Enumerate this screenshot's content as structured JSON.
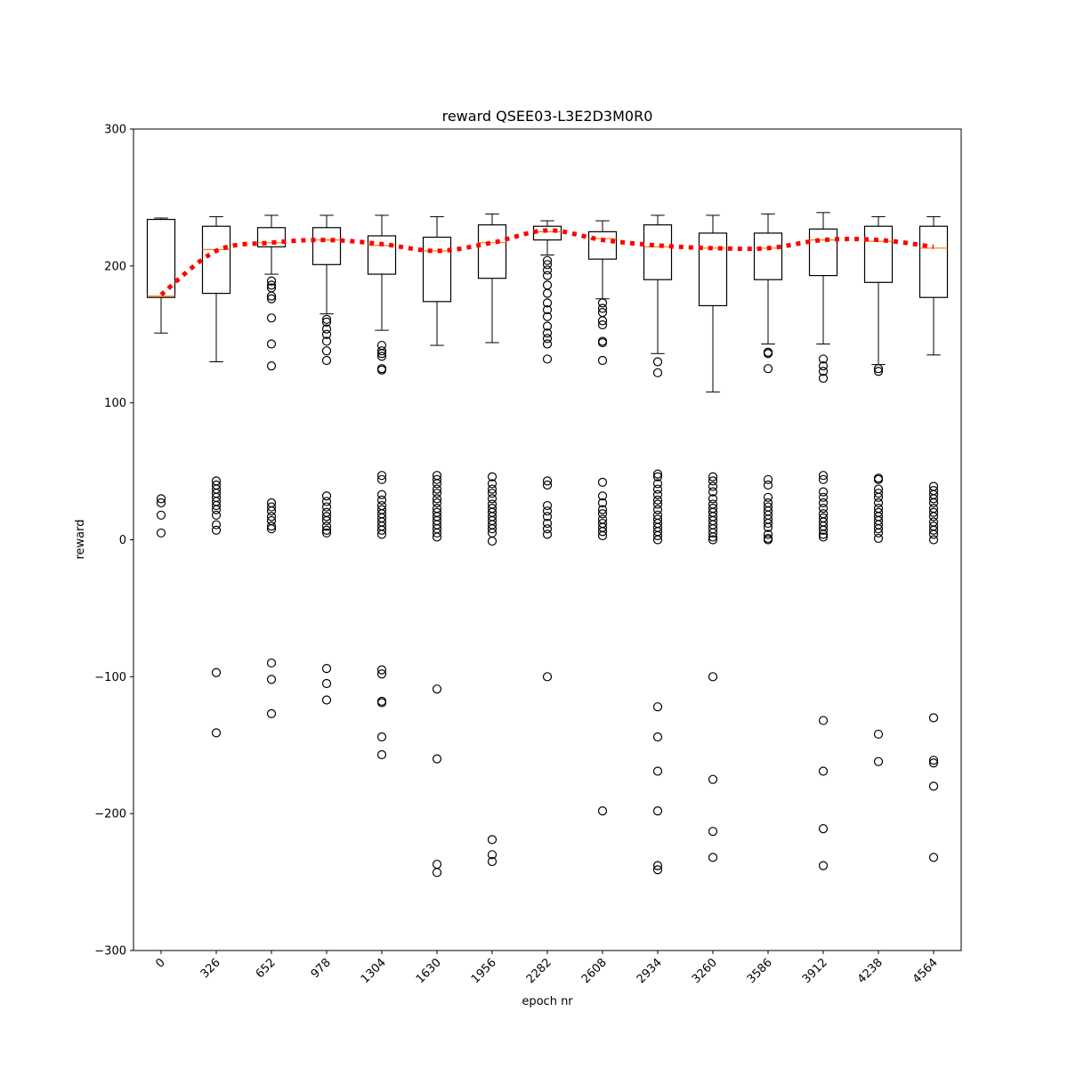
{
  "chart_data": {
    "type": "box",
    "title": "reward QSEE03-L3E2D3M0R0",
    "xlabel": "epoch nr",
    "ylabel": "reward",
    "ylim": [
      -300,
      300
    ],
    "yticks": [
      "300",
      "200",
      "100",
      "0",
      "−100",
      "−200",
      "−300"
    ],
    "categories": [
      "0",
      "326",
      "652",
      "978",
      "1304",
      "1630",
      "1956",
      "2282",
      "2608",
      "2934",
      "3260",
      "3586",
      "3912",
      "4238",
      "4564"
    ],
    "grid": false,
    "legend": "none",
    "boxes": [
      {
        "category": "0",
        "whisker_low": 151,
        "q1": 177,
        "median": 178,
        "q3": 234,
        "whisker_high": 235,
        "outliers": [
          30,
          27,
          18,
          5
        ]
      },
      {
        "category": "326",
        "whisker_low": 130,
        "q1": 180,
        "median": 212,
        "q3": 229,
        "whisker_high": 236,
        "outliers": [
          43,
          40,
          37,
          34,
          31,
          28,
          25,
          22,
          18,
          11,
          7,
          -97,
          -141
        ]
      },
      {
        "category": "652",
        "whisker_low": 194,
        "q1": 214,
        "median": 217,
        "q3": 228,
        "whisker_high": 237,
        "outliers": [
          189,
          186,
          184,
          178,
          176,
          162,
          143,
          127,
          27,
          24,
          21,
          17,
          14,
          10,
          8,
          -90,
          -102,
          -127
        ]
      },
      {
        "category": "978",
        "whisker_low": 165,
        "q1": 201,
        "median": 219,
        "q3": 228,
        "whisker_high": 237,
        "outliers": [
          161,
          159,
          154,
          150,
          145,
          138,
          131,
          32,
          28,
          24,
          20,
          17,
          14,
          10,
          7,
          5,
          -94,
          -105,
          -117
        ]
      },
      {
        "category": "1304",
        "whisker_low": 153,
        "q1": 194,
        "median": 215,
        "q3": 222,
        "whisker_high": 237,
        "outliers": [
          142,
          138,
          136,
          134,
          125,
          124,
          47,
          44,
          33,
          29,
          25,
          22,
          19,
          16,
          13,
          10,
          7,
          4,
          -95,
          -98,
          -118,
          -119,
          -144,
          -157
        ]
      },
      {
        "category": "1630",
        "whisker_low": 142,
        "q1": 174,
        "median": 211,
        "q3": 221,
        "whisker_high": 236,
        "outliers": [
          47,
          44,
          41,
          37,
          34,
          30,
          27,
          23,
          20,
          17,
          14,
          11,
          8,
          5,
          2,
          -109,
          -160,
          -237,
          -243
        ]
      },
      {
        "category": "1956",
        "whisker_low": 144,
        "q1": 191,
        "median": 217,
        "q3": 230,
        "whisker_high": 238,
        "outliers": [
          46,
          41,
          37,
          34,
          30,
          26,
          23,
          20,
          17,
          14,
          11,
          8,
          5,
          -1,
          -219,
          -230,
          -235
        ]
      },
      {
        "category": "2282",
        "whisker_low": 208,
        "q1": 219,
        "median": 225,
        "q3": 229,
        "whisker_high": 233,
        "outliers": [
          204,
          201,
          197,
          193,
          186,
          180,
          173,
          168,
          163,
          156,
          151,
          147,
          143,
          132,
          43,
          40,
          25,
          21,
          17,
          12,
          8,
          4,
          -100
        ]
      },
      {
        "category": "2608",
        "whisker_low": 176,
        "q1": 205,
        "median": 220,
        "q3": 225,
        "whisker_high": 233,
        "outliers": [
          173,
          169,
          166,
          160,
          157,
          145,
          144,
          131,
          42,
          32,
          27,
          22,
          19,
          15,
          12,
          9,
          6,
          3,
          -198
        ]
      },
      {
        "category": "2934",
        "whisker_low": 136,
        "q1": 190,
        "median": 214,
        "q3": 230,
        "whisker_high": 237,
        "outliers": [
          130,
          122,
          48,
          46,
          41,
          37,
          33,
          29,
          26,
          22,
          18,
          15,
          12,
          9,
          6,
          3,
          0,
          -122,
          -144,
          -169,
          -198,
          -238,
          -241
        ]
      },
      {
        "category": "3260",
        "whisker_low": 108,
        "q1": 171,
        "median": 213,
        "q3": 224,
        "whisker_high": 237,
        "outliers": [
          46,
          43,
          39,
          35,
          30,
          26,
          23,
          20,
          17,
          14,
          11,
          8,
          5,
          2,
          0,
          -100,
          -175,
          -213,
          -232
        ]
      },
      {
        "category": "3586",
        "whisker_low": 143,
        "q1": 190,
        "median": 213,
        "q3": 224,
        "whisker_high": 238,
        "outliers": [
          137,
          136,
          125,
          44,
          40,
          31,
          27,
          24,
          21,
          18,
          15,
          12,
          9,
          4,
          1,
          0
        ]
      },
      {
        "category": "3912",
        "whisker_low": 143,
        "q1": 193,
        "median": 219,
        "q3": 227,
        "whisker_high": 239,
        "outliers": [
          132,
          127,
          123,
          118,
          47,
          44,
          35,
          31,
          27,
          23,
          19,
          16,
          13,
          10,
          7,
          4,
          2,
          -132,
          -169,
          -211,
          -238
        ]
      },
      {
        "category": "4238",
        "whisker_low": 128,
        "q1": 188,
        "median": 218,
        "q3": 229,
        "whisker_high": 236,
        "outliers": [
          125,
          123,
          45,
          44,
          37,
          34,
          31,
          27,
          23,
          20,
          17,
          14,
          11,
          8,
          5,
          1,
          -142,
          -162
        ]
      },
      {
        "category": "4564",
        "whisker_low": 135,
        "q1": 177,
        "median": 213,
        "q3": 229,
        "whisker_high": 236,
        "outliers": [
          39,
          36,
          33,
          30,
          27,
          23,
          20,
          17,
          13,
          10,
          7,
          4,
          0,
          -130,
          -161,
          -163,
          -180,
          -232
        ]
      }
    ],
    "series": [
      {
        "style": "dotted",
        "color": "#ff0000",
        "values": [
          179,
          211,
          217,
          219,
          216,
          211,
          217,
          226,
          219,
          215,
          213,
          213,
          219,
          219,
          214
        ]
      }
    ],
    "colors": {
      "median": "#ff7f0e",
      "trend": "#ff0000",
      "box": "#000000"
    }
  }
}
